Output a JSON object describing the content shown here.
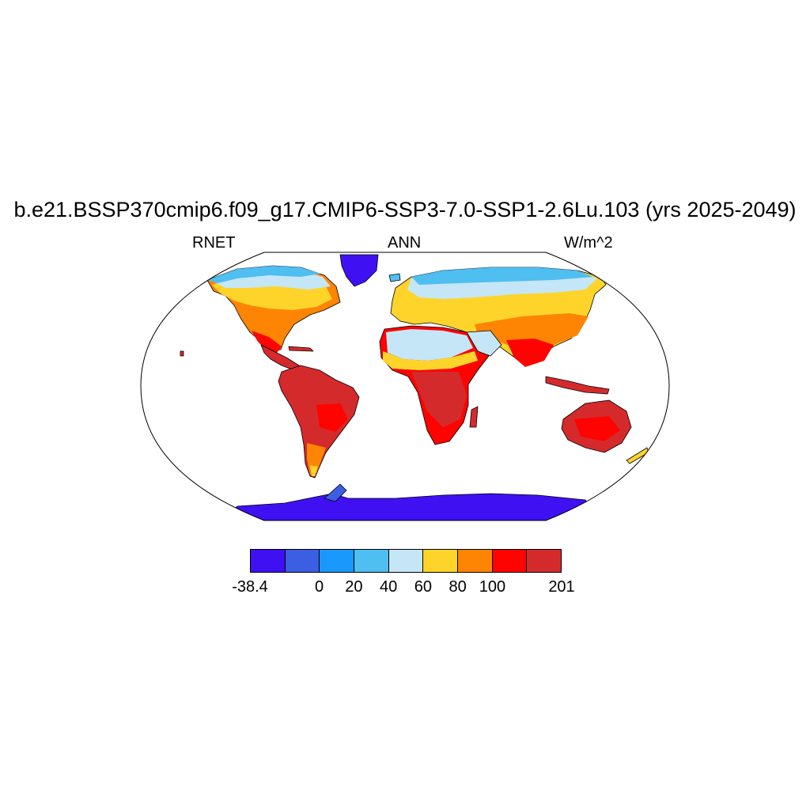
{
  "title": "b.e21.BSSP370cmip6.f09_g17.CMIP6-SSP3-7.0-SSP1-2.6Lu.103 (yrs 2025-2049)",
  "subtitle": {
    "left": "RNET",
    "center": "ANN",
    "right": "W/m^2"
  },
  "map": {
    "projection": "Robinson",
    "field": "net radiation, annual mean",
    "region_levels": {
      "antarctica": "-38.4 to -20",
      "greenland": "-38.4 to -20",
      "arctic_coasts": "0 to 40",
      "northern_boreal": "40 to 60",
      "northern_midlatitudes": "60 to 100",
      "sahara": "40 to 80",
      "tropics": "100 to 201",
      "australia": "100 to 201",
      "patagonia": "60 to 100"
    }
  },
  "colorbar": {
    "colors": [
      "#3f11f2",
      "#3c5ee3",
      "#1a98fb",
      "#4fbef1",
      "#c5e6f6",
      "#fed42b",
      "#fe8503",
      "#fe0300",
      "#d52a2c"
    ],
    "labels": [
      {
        "text": "-38.4",
        "boundary": 0
      },
      {
        "text": "0",
        "boundary": 2
      },
      {
        "text": "20",
        "boundary": 3
      },
      {
        "text": "40",
        "boundary": 4
      },
      {
        "text": "60",
        "boundary": 5
      },
      {
        "text": "80",
        "boundary": 6
      },
      {
        "text": "100",
        "boundary": 7
      },
      {
        "text": "201",
        "boundary": 9
      }
    ]
  }
}
